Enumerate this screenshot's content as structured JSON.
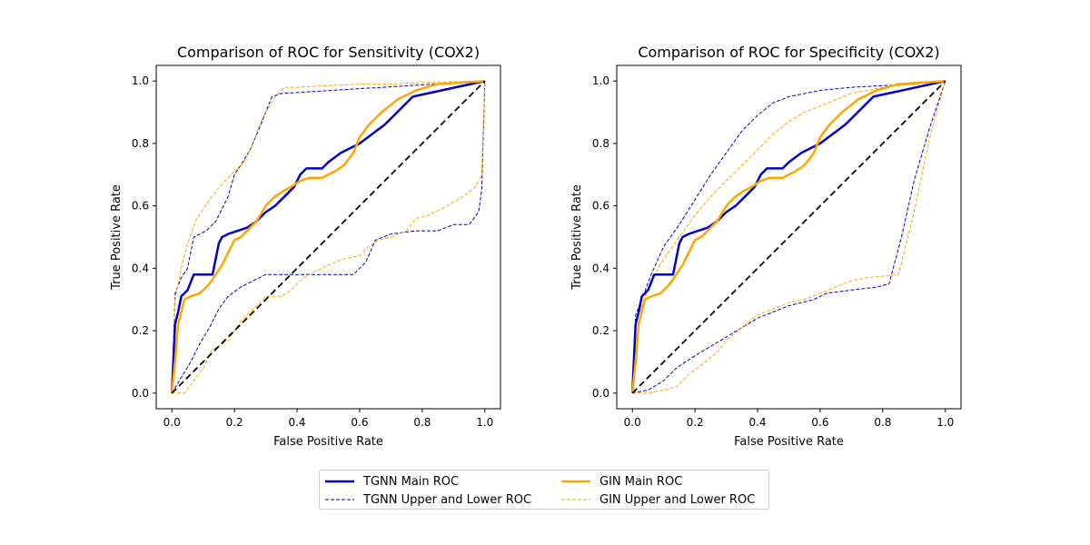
{
  "colors": {
    "tgnn": "#0000cc",
    "gin": "#ffa500",
    "diag": "#000000"
  },
  "legend": {
    "tgnn_main": "TGNN Main ROC",
    "tgnn_bounds": "TGNN Upper and Lower ROC",
    "gin_main": "GIN Main ROC",
    "gin_bounds": "GIN Upper and Lower ROC"
  },
  "chart_data": [
    {
      "type": "line",
      "title": "Comparison of ROC for Sensitivity (COX2)",
      "xlabel": "False Positive Rate",
      "ylabel": "True Positive Rate",
      "xlim": [
        -0.05,
        1.05
      ],
      "ylim": [
        -0.05,
        1.05
      ],
      "xticks": [
        "0.0",
        "0.2",
        "0.4",
        "0.6",
        "0.8",
        "1.0"
      ],
      "yticks": [
        "0.0",
        "0.2",
        "0.4",
        "0.6",
        "0.8",
        "1.0"
      ],
      "series": [
        {
          "name": "TGNN Upper",
          "role": "bound",
          "color": "tgnn",
          "x": [
            0,
            0.01,
            0.03,
            0.05,
            0.07,
            0.11,
            0.14,
            0.18,
            0.2,
            0.22,
            0.25,
            0.28,
            0.3,
            0.32,
            0.35,
            1.0
          ],
          "y": [
            0,
            0.32,
            0.37,
            0.4,
            0.5,
            0.52,
            0.55,
            0.63,
            0.7,
            0.73,
            0.78,
            0.85,
            0.9,
            0.95,
            0.96,
            1.0
          ]
        },
        {
          "name": "TGNN Lower",
          "role": "bound",
          "color": "tgnn",
          "x": [
            0,
            0.03,
            0.06,
            0.09,
            0.12,
            0.15,
            0.18,
            0.22,
            0.26,
            0.3,
            0.4,
            0.5,
            0.58,
            0.62,
            0.65,
            0.7,
            0.78,
            0.85,
            0.9,
            0.95,
            0.98,
            0.99,
            1.0
          ],
          "y": [
            0,
            0.05,
            0.1,
            0.16,
            0.21,
            0.27,
            0.31,
            0.34,
            0.36,
            0.38,
            0.38,
            0.38,
            0.38,
            0.42,
            0.49,
            0.51,
            0.52,
            0.52,
            0.54,
            0.54,
            0.58,
            0.65,
            1.0
          ]
        },
        {
          "name": "TGNN Main",
          "role": "main",
          "color": "tgnn",
          "x": [
            0,
            0.01,
            0.02,
            0.03,
            0.05,
            0.07,
            0.1,
            0.13,
            0.15,
            0.16,
            0.18,
            0.21,
            0.24,
            0.27,
            0.3,
            0.33,
            0.36,
            0.39,
            0.41,
            0.43,
            0.45,
            0.48,
            0.5,
            0.54,
            0.6,
            0.68,
            0.77,
            1.0
          ],
          "y": [
            0,
            0.22,
            0.26,
            0.31,
            0.33,
            0.38,
            0.38,
            0.38,
            0.48,
            0.5,
            0.51,
            0.52,
            0.53,
            0.55,
            0.58,
            0.6,
            0.63,
            0.66,
            0.7,
            0.72,
            0.72,
            0.72,
            0.74,
            0.77,
            0.8,
            0.86,
            0.95,
            1.0
          ]
        },
        {
          "name": "GIN Upper",
          "role": "bound",
          "color": "gin",
          "x": [
            0,
            0.01,
            0.03,
            0.05,
            0.08,
            0.12,
            0.16,
            0.2,
            0.23,
            0.26,
            0.28,
            0.3,
            0.33,
            0.36,
            0.4,
            0.5,
            0.6,
            0.7,
            0.8,
            0.9,
            1.0
          ],
          "y": [
            0,
            0.3,
            0.4,
            0.48,
            0.56,
            0.62,
            0.67,
            0.71,
            0.74,
            0.8,
            0.86,
            0.9,
            0.95,
            0.98,
            0.98,
            0.985,
            0.99,
            0.99,
            0.995,
            0.998,
            1.0
          ]
        },
        {
          "name": "GIN Lower",
          "role": "bound",
          "color": "gin",
          "x": [
            0,
            0.04,
            0.07,
            0.1,
            0.13,
            0.15,
            0.18,
            0.22,
            0.26,
            0.3,
            0.35,
            0.38,
            0.42,
            0.46,
            0.5,
            0.55,
            0.6,
            0.63,
            0.66,
            0.7,
            0.75,
            0.78,
            0.82,
            0.88,
            0.93,
            0.97,
            0.99,
            1.0
          ],
          "y": [
            0,
            0.0,
            0.04,
            0.08,
            0.14,
            0.15,
            0.17,
            0.23,
            0.27,
            0.31,
            0.31,
            0.33,
            0.37,
            0.39,
            0.41,
            0.43,
            0.44,
            0.47,
            0.49,
            0.5,
            0.52,
            0.56,
            0.57,
            0.6,
            0.63,
            0.66,
            0.7,
            1.0
          ]
        },
        {
          "name": "GIN Main",
          "role": "main",
          "color": "gin",
          "x": [
            0,
            0.01,
            0.02,
            0.04,
            0.06,
            0.09,
            0.12,
            0.14,
            0.16,
            0.18,
            0.2,
            0.22,
            0.24,
            0.27,
            0.3,
            0.33,
            0.36,
            0.38,
            0.41,
            0.44,
            0.48,
            0.52,
            0.55,
            0.58,
            0.6,
            0.63,
            0.67,
            0.72,
            0.78,
            0.85,
            1.0
          ],
          "y": [
            0,
            0.1,
            0.22,
            0.3,
            0.31,
            0.32,
            0.35,
            0.38,
            0.41,
            0.45,
            0.49,
            0.5,
            0.52,
            0.55,
            0.6,
            0.63,
            0.65,
            0.66,
            0.68,
            0.69,
            0.69,
            0.71,
            0.73,
            0.77,
            0.82,
            0.86,
            0.9,
            0.94,
            0.97,
            0.99,
            1.0
          ]
        },
        {
          "name": "Chance",
          "role": "diagonal",
          "color": "diag",
          "x": [
            0,
            1
          ],
          "y": [
            0,
            1
          ]
        }
      ]
    },
    {
      "type": "line",
      "title": "Comparison of ROC for Specificity (COX2)",
      "xlabel": "False Positive Rate",
      "ylabel": "True Positive Rate",
      "xlim": [
        -0.05,
        1.05
      ],
      "ylim": [
        -0.05,
        1.05
      ],
      "xticks": [
        "0.0",
        "0.2",
        "0.4",
        "0.6",
        "0.8",
        "1.0"
      ],
      "yticks": [
        "0.0",
        "0.2",
        "0.4",
        "0.6",
        "0.8",
        "1.0"
      ],
      "series": [
        {
          "name": "TGNN Upper",
          "role": "bound",
          "color": "tgnn",
          "x": [
            0,
            0.01,
            0.03,
            0.06,
            0.1,
            0.15,
            0.2,
            0.25,
            0.3,
            0.35,
            0.4,
            0.45,
            0.5,
            0.6,
            0.7,
            0.8,
            0.9,
            1.0
          ],
          "y": [
            0,
            0.25,
            0.3,
            0.38,
            0.47,
            0.54,
            0.62,
            0.7,
            0.77,
            0.84,
            0.89,
            0.93,
            0.95,
            0.97,
            0.98,
            0.985,
            0.99,
            1.0
          ]
        },
        {
          "name": "TGNN Lower",
          "role": "bound",
          "color": "tgnn",
          "x": [
            0,
            0.05,
            0.1,
            0.14,
            0.2,
            0.25,
            0.3,
            0.35,
            0.4,
            0.5,
            0.58,
            0.62,
            0.7,
            0.78,
            0.82,
            0.86,
            0.9,
            0.95,
            1.0
          ],
          "y": [
            0,
            0.01,
            0.04,
            0.08,
            0.12,
            0.15,
            0.18,
            0.21,
            0.24,
            0.28,
            0.3,
            0.32,
            0.33,
            0.34,
            0.35,
            0.5,
            0.68,
            0.85,
            1.0
          ]
        },
        {
          "name": "TGNN Main",
          "role": "main",
          "color": "tgnn",
          "x": [
            0,
            0.01,
            0.02,
            0.03,
            0.05,
            0.07,
            0.1,
            0.13,
            0.15,
            0.16,
            0.18,
            0.21,
            0.24,
            0.27,
            0.3,
            0.33,
            0.36,
            0.39,
            0.41,
            0.43,
            0.45,
            0.48,
            0.5,
            0.54,
            0.6,
            0.68,
            0.77,
            1.0
          ],
          "y": [
            0,
            0.22,
            0.26,
            0.31,
            0.33,
            0.38,
            0.38,
            0.38,
            0.48,
            0.5,
            0.51,
            0.52,
            0.53,
            0.55,
            0.58,
            0.6,
            0.63,
            0.66,
            0.7,
            0.72,
            0.72,
            0.72,
            0.74,
            0.77,
            0.8,
            0.86,
            0.95,
            1.0
          ]
        },
        {
          "name": "GIN Upper",
          "role": "bound",
          "color": "gin",
          "x": [
            0,
            0.01,
            0.03,
            0.06,
            0.1,
            0.15,
            0.2,
            0.25,
            0.3,
            0.35,
            0.4,
            0.45,
            0.5,
            0.55,
            0.6,
            0.65,
            0.7,
            0.8,
            0.9,
            1.0
          ],
          "y": [
            0,
            0.22,
            0.28,
            0.36,
            0.43,
            0.5,
            0.57,
            0.63,
            0.68,
            0.73,
            0.78,
            0.83,
            0.87,
            0.9,
            0.92,
            0.94,
            0.96,
            0.98,
            0.99,
            1.0
          ]
        },
        {
          "name": "GIN Lower",
          "role": "bound",
          "color": "gin",
          "x": [
            0,
            0.05,
            0.1,
            0.14,
            0.18,
            0.22,
            0.27,
            0.3,
            0.35,
            0.4,
            0.45,
            0.5,
            0.55,
            0.6,
            0.65,
            0.7,
            0.75,
            0.8,
            0.85,
            0.9,
            0.95,
            1.0
          ],
          "y": [
            0,
            0.0,
            0.01,
            0.02,
            0.06,
            0.09,
            0.13,
            0.17,
            0.21,
            0.25,
            0.27,
            0.29,
            0.3,
            0.32,
            0.34,
            0.36,
            0.37,
            0.375,
            0.38,
            0.58,
            0.82,
            1.0
          ]
        },
        {
          "name": "GIN Main",
          "role": "main",
          "color": "gin",
          "x": [
            0,
            0.01,
            0.02,
            0.04,
            0.06,
            0.09,
            0.12,
            0.14,
            0.16,
            0.18,
            0.2,
            0.22,
            0.24,
            0.27,
            0.3,
            0.33,
            0.36,
            0.38,
            0.41,
            0.44,
            0.48,
            0.52,
            0.55,
            0.58,
            0.6,
            0.63,
            0.67,
            0.72,
            0.78,
            0.85,
            1.0
          ],
          "y": [
            0,
            0.1,
            0.22,
            0.3,
            0.31,
            0.32,
            0.35,
            0.38,
            0.41,
            0.45,
            0.49,
            0.5,
            0.52,
            0.55,
            0.6,
            0.63,
            0.65,
            0.66,
            0.68,
            0.69,
            0.69,
            0.71,
            0.73,
            0.77,
            0.82,
            0.86,
            0.9,
            0.94,
            0.97,
            0.99,
            1.0
          ]
        },
        {
          "name": "Chance",
          "role": "diagonal",
          "color": "diag",
          "x": [
            0,
            1
          ],
          "y": [
            0,
            1
          ]
        }
      ]
    }
  ]
}
